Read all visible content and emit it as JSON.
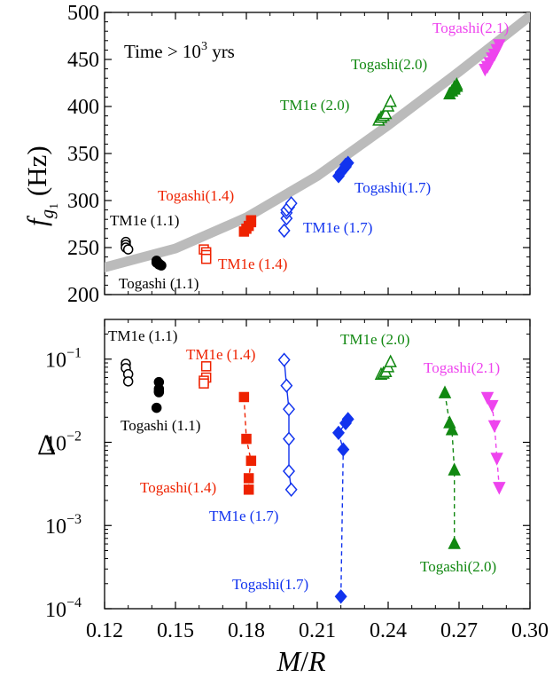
{
  "chart_data": [
    {
      "type": "scatter",
      "panel": "top",
      "annotation": "Time > 10^3 yrs",
      "annotation_parts": {
        "main": "Time > 10",
        "sup": "3",
        "tail": " yrs"
      },
      "ylabel": "f_g1 (Hz)",
      "ylabel_parts": {
        "main": "f",
        "sub": "g",
        "subsub": "1",
        "unit": " (Hz)"
      },
      "xlabel": "",
      "xlim": [
        0.12,
        0.3
      ],
      "ylim": [
        200,
        500
      ],
      "xticks": [
        0.12,
        0.15,
        0.18,
        0.21,
        0.24,
        0.27,
        0.3
      ],
      "yticks": [
        200,
        250,
        300,
        350,
        400,
        450,
        500
      ],
      "yticklabels": [
        "200",
        "250",
        "300",
        "350",
        "400",
        "450",
        "500"
      ],
      "fit_curve": {
        "color": "#bbbbbb",
        "x": [
          0.12,
          0.15,
          0.18,
          0.21,
          0.24,
          0.27,
          0.3
        ],
        "y": [
          229,
          249,
          282,
          326,
          380,
          437,
          496
        ]
      },
      "series": [
        {
          "label": "TM1e (1.1)",
          "color": "#000000",
          "marker": "circle",
          "filled": false,
          "x": [
            0.129,
            0.129,
            0.129,
            0.13
          ],
          "y": [
            256,
            253,
            250,
            248
          ]
        },
        {
          "label": "Togashi (1.1)",
          "color": "#000000",
          "marker": "circle",
          "filled": true,
          "x": [
            0.142,
            0.142,
            0.143,
            0.143,
            0.144
          ],
          "y": [
            236,
            234,
            233,
            232,
            231
          ]
        },
        {
          "label": "Togashi(1.4)",
          "color": "#ee2200",
          "marker": "square",
          "filled": true,
          "x": [
            0.179,
            0.18,
            0.181,
            0.182,
            0.182
          ],
          "y": [
            267,
            270,
            273,
            277,
            279
          ]
        },
        {
          "label": "TM1e (1.4)",
          "color": "#ee2200",
          "marker": "square",
          "filled": false,
          "x": [
            0.162,
            0.163,
            0.163,
            0.163
          ],
          "y": [
            248,
            245,
            242,
            238
          ]
        },
        {
          "label": "TM1e (1.7)",
          "color": "#1133ee",
          "marker": "diamond",
          "filled": false,
          "x": [
            0.196,
            0.197,
            0.197,
            0.197,
            0.198,
            0.199
          ],
          "y": [
            268,
            281,
            287,
            290,
            293,
            297
          ]
        },
        {
          "label": "Togashi(1.7)",
          "color": "#1133ee",
          "marker": "diamond",
          "filled": true,
          "x": [
            0.219,
            0.22,
            0.221,
            0.222,
            0.222,
            0.223
          ],
          "y": [
            326,
            330,
            333,
            336,
            338,
            340
          ]
        },
        {
          "label": "TM1e (2.0)",
          "color": "#118811",
          "marker": "triangle-up",
          "filled": false,
          "x": [
            0.236,
            0.237,
            0.238,
            0.239,
            0.24,
            0.241
          ],
          "y": [
            385,
            388,
            390,
            392,
            400,
            405
          ]
        },
        {
          "label": "Togashi(2.0)",
          "color": "#118811",
          "marker": "triangle-up",
          "filled": true,
          "x": [
            0.266,
            0.267,
            0.268,
            0.268,
            0.269,
            0.269
          ],
          "y": [
            413,
            416,
            418,
            420,
            421,
            423
          ]
        },
        {
          "label": "Togashi(2.1)",
          "color": "#ee44ee",
          "marker": "triangle-down",
          "filled": true,
          "x": [
            0.281,
            0.282,
            0.283,
            0.284,
            0.285,
            0.286,
            0.287
          ],
          "y": [
            440,
            443,
            447,
            452,
            456,
            461,
            466
          ]
        }
      ]
    },
    {
      "type": "scatter",
      "panel": "bottom",
      "ylabel": "Δ",
      "xlabel": "M/R",
      "xlabel_parts": {
        "a": "M",
        "slash": "/",
        "b": "R"
      },
      "yscale": "log",
      "xlim": [
        0.12,
        0.3
      ],
      "ylim": [
        0.0001,
        0.3
      ],
      "xticks": [
        0.12,
        0.15,
        0.18,
        0.21,
        0.24,
        0.27,
        0.3
      ],
      "xticklabels": [
        "0.12",
        "0.15",
        "0.18",
        "0.21",
        "0.24",
        "0.27",
        "0.30"
      ],
      "ymajor": [
        0.0001,
        0.001,
        0.01,
        0.1
      ],
      "yticklabels": [
        {
          "base": "10",
          "exp": "−4"
        },
        {
          "base": "10",
          "exp": "−3"
        },
        {
          "base": "10",
          "exp": "−2"
        },
        {
          "base": "10",
          "exp": "−1"
        }
      ],
      "series": [
        {
          "label": "TM1e (1.1)",
          "color": "#000000",
          "marker": "circle",
          "filled": false,
          "line": "none",
          "x": [
            0.129,
            0.129,
            0.13,
            0.13
          ],
          "y": [
            0.088,
            0.078,
            0.066,
            0.054
          ]
        },
        {
          "label": "Togashi (1.1)",
          "color": "#000000",
          "marker": "circle",
          "filled": true,
          "line": "none",
          "x": [
            0.143,
            0.143,
            0.143,
            0.143,
            0.142
          ],
          "y": [
            0.053,
            0.044,
            0.041,
            0.04,
            0.026
          ]
        },
        {
          "label": "TM1e (1.4)",
          "color": "#ee2200",
          "marker": "square",
          "filled": false,
          "line": "none",
          "x": [
            0.163,
            0.163,
            0.162,
            0.162
          ],
          "y": [
            0.082,
            0.06,
            0.055,
            0.051
          ]
        },
        {
          "label": "Togashi(1.4)",
          "color": "#ee2200",
          "marker": "square",
          "filled": true,
          "line": "dashed",
          "x": [
            0.179,
            0.18,
            0.182,
            0.181,
            0.181
          ],
          "y": [
            0.035,
            0.011,
            0.006,
            0.0037,
            0.0027
          ]
        },
        {
          "label": "TM1e (1.7)",
          "color": "#1133ee",
          "marker": "diamond",
          "filled": false,
          "line": "solid",
          "x": [
            0.196,
            0.197,
            0.198,
            0.198,
            0.198,
            0.199
          ],
          "y": [
            0.098,
            0.048,
            0.025,
            0.011,
            0.0045,
            0.0027
          ]
        },
        {
          "label": "Togashi(1.7)",
          "color": "#1133ee",
          "marker": "diamond",
          "filled": true,
          "line": "dashed",
          "x": [
            0.223,
            0.222,
            0.219,
            0.221,
            0.22
          ],
          "y": [
            0.019,
            0.017,
            0.013,
            0.0082,
            0.00014
          ]
        },
        {
          "label": "TM1e (2.0)",
          "color": "#118811",
          "marker": "triangle-up",
          "filled": false,
          "line": "none",
          "x": [
            0.237,
            0.238,
            0.239,
            0.24,
            0.241
          ],
          "y": [
            0.065,
            0.067,
            0.07,
            0.08,
            0.092
          ]
        },
        {
          "label": "Togashi(2.0)",
          "color": "#118811",
          "marker": "triangle-up",
          "filled": true,
          "line": "dashed",
          "x": [
            0.264,
            0.266,
            0.267,
            0.268,
            0.268
          ],
          "y": [
            0.039,
            0.017,
            0.014,
            0.0046,
            0.0006
          ]
        },
        {
          "label": "Togashi(2.1)",
          "color": "#ee44ee",
          "marker": "triangle-down",
          "filled": true,
          "line": "dashed",
          "x": [
            0.282,
            0.284,
            0.285,
            0.286,
            0.287
          ],
          "y": [
            0.035,
            0.028,
            0.016,
            0.0065,
            0.0029
          ]
        }
      ]
    }
  ]
}
